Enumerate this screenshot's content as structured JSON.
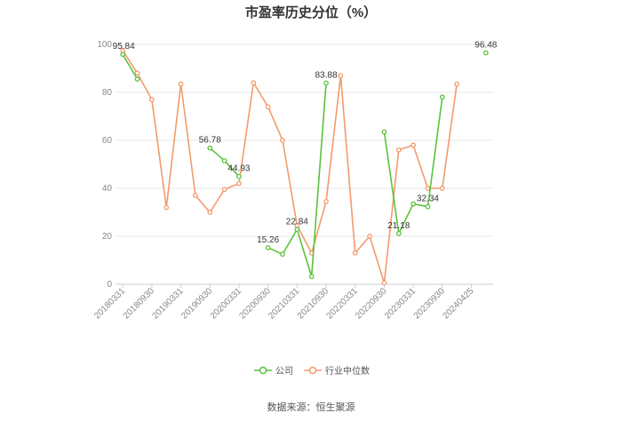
{
  "chart_data": {
    "type": "line",
    "title": "市盈率历史分位（%）",
    "xlabel": "",
    "ylabel": "",
    "ylim": [
      0,
      100
    ],
    "yticks": [
      0,
      20,
      40,
      60,
      80,
      100
    ],
    "grid": true,
    "legend_position": "bottom-center",
    "x_labels": [
      "20180331",
      "20180930",
      "20190331",
      "20190930",
      "20200331",
      "20200930",
      "20210331",
      "20210930",
      "20220331",
      "20220930",
      "20230331",
      "20230930",
      "20240425"
    ],
    "series": [
      {
        "name": "公司",
        "color": "#5cc23a",
        "values": [
          95.84,
          85.5,
          null,
          null,
          null,
          null,
          56.78,
          51.5,
          44.93,
          null,
          15.26,
          12.5,
          22.84,
          3.2,
          83.88,
          null,
          null,
          null,
          63.5,
          21.18,
          33.5,
          32.34,
          78.0,
          null,
          null,
          96.48
        ],
        "labels": [
          {
            "index": 0,
            "text": "95.84"
          },
          {
            "index": 6,
            "text": "56.78"
          },
          {
            "index": 8,
            "text": "44.93"
          },
          {
            "index": 10,
            "text": "15.26"
          },
          {
            "index": 12,
            "text": "22.84"
          },
          {
            "index": 14,
            "text": "83.88"
          },
          {
            "index": 19,
            "text": "21.18"
          },
          {
            "index": 21,
            "text": "32.34"
          },
          {
            "index": 25,
            "text": "96.48"
          }
        ]
      },
      {
        "name": "行业中位数",
        "color": "#f39a6d",
        "values": [
          97.5,
          88.0,
          77.0,
          32.0,
          83.5,
          37.0,
          30.0,
          39.5,
          42.0,
          84.0,
          74.0,
          60.0,
          24.5,
          13.0,
          34.5,
          87.0,
          13.0,
          20.0,
          0.5,
          56.0,
          58.0,
          40.0,
          40.0,
          83.5,
          null,
          null
        ]
      }
    ]
  },
  "footer": {
    "source": "数据来源：恒生聚源"
  }
}
